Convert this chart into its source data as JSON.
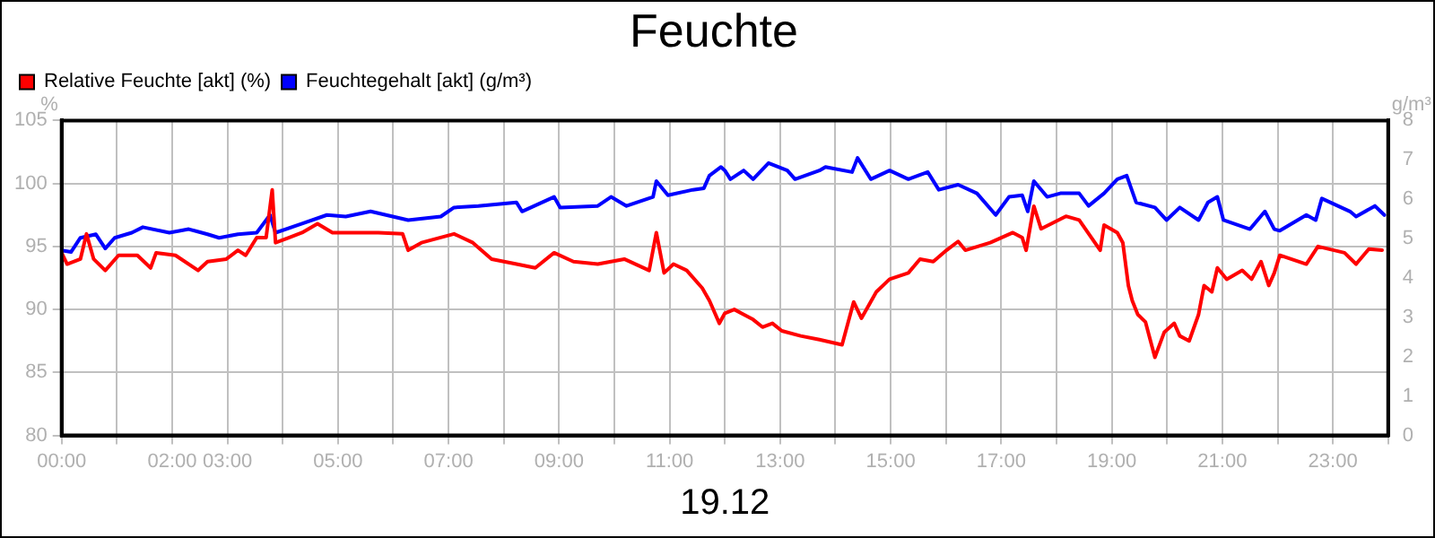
{
  "chart_data": {
    "type": "line",
    "title": "Feuchte",
    "xlabel": "19.12",
    "ylabel": "%",
    "y2label": "g/m³",
    "xlim": [
      0,
      24
    ],
    "xticks": [
      {
        "value": 0,
        "label": "00:00"
      },
      {
        "value": 1,
        "label": null
      },
      {
        "value": 2,
        "label": "02:00"
      },
      {
        "value": 3,
        "label": "03:00"
      },
      {
        "value": 4,
        "label": null
      },
      {
        "value": 5,
        "label": "05:00"
      },
      {
        "value": 6,
        "label": null
      },
      {
        "value": 7,
        "label": "07:00"
      },
      {
        "value": 8,
        "label": null
      },
      {
        "value": 9,
        "label": "09:00"
      },
      {
        "value": 10,
        "label": null
      },
      {
        "value": 11,
        "label": "11:00"
      },
      {
        "value": 12,
        "label": null
      },
      {
        "value": 13,
        "label": "13:00"
      },
      {
        "value": 14,
        "label": null
      },
      {
        "value": 15,
        "label": "15:00"
      },
      {
        "value": 16,
        "label": null
      },
      {
        "value": 17,
        "label": "17:00"
      },
      {
        "value": 18,
        "label": null
      },
      {
        "value": 19,
        "label": "19:00"
      },
      {
        "value": 20,
        "label": null
      },
      {
        "value": 21,
        "label": "21:00"
      },
      {
        "value": 22,
        "label": null
      },
      {
        "value": 23,
        "label": "23:00"
      },
      {
        "value": 24,
        "label": null
      }
    ],
    "ylim": [
      80,
      105
    ],
    "yticks": [
      80,
      85,
      90,
      95,
      100,
      105
    ],
    "y2lim": [
      0,
      8
    ],
    "y2ticks": [
      0,
      1,
      2,
      3,
      4,
      5,
      6,
      7,
      8
    ],
    "grid": true,
    "legend": "top left",
    "marker": "none",
    "line_style": "solid",
    "series": [
      {
        "name": "Relative Feuchte [akt] (%)",
        "color": "#ff0000",
        "x": [
          0,
          0.1,
          0.34,
          0.45,
          0.58,
          0.79,
          1.03,
          1.37,
          1.61,
          1.71,
          2.06,
          2.47,
          2.64,
          2.98,
          3.19,
          3.33,
          3.53,
          3.7,
          3.81,
          3.87,
          4.11,
          4.35,
          4.63,
          4.9,
          5.38,
          5.73,
          6.17,
          6.27,
          6.51,
          7.1,
          7.44,
          7.78,
          8.23,
          8.57,
          8.91,
          9.26,
          9.7,
          10.18,
          10.63,
          10.76,
          10.9,
          11.07,
          11.31,
          11.59,
          11.72,
          11.9,
          12,
          12.17,
          12.34,
          12.51,
          12.68,
          12.86,
          13.03,
          13.37,
          13.71,
          14.12,
          14.33,
          14.47,
          14.74,
          14.98,
          15.32,
          15.53,
          15.77,
          16.01,
          16.22,
          16.35,
          16.8,
          17.21,
          17.38,
          17.45,
          17.59,
          17.72,
          18.17,
          18.41,
          18.79,
          18.86,
          19.1,
          19.2,
          19.3,
          19.37,
          19.47,
          19.61,
          19.78,
          19.95,
          20.13,
          20.23,
          20.4,
          20.57,
          20.67,
          20.81,
          20.91,
          21.08,
          21.36,
          21.53,
          21.7,
          21.84,
          21.94,
          22.04,
          22.52,
          22.73,
          23.21,
          23.42,
          23.65,
          23.89
        ],
        "values": [
          94.5,
          93.6,
          94,
          96,
          94,
          93.1,
          94.3,
          94.3,
          93.3,
          94.5,
          94.3,
          93.1,
          93.8,
          94,
          94.7,
          94.3,
          95.7,
          95.7,
          99.5,
          95.3,
          95.7,
          96.1,
          96.8,
          96.1,
          96.1,
          96.1,
          96,
          94.7,
          95.3,
          96,
          95.3,
          94,
          93.6,
          93.3,
          94.5,
          93.8,
          93.6,
          94,
          93.1,
          96.1,
          92.9,
          93.6,
          93.1,
          91.7,
          90.7,
          88.9,
          89.7,
          90,
          89.6,
          89.2,
          88.6,
          88.9,
          88.3,
          87.9,
          87.6,
          87.2,
          90.6,
          89.3,
          91.4,
          92.4,
          92.9,
          94,
          93.8,
          94.7,
          95.4,
          94.7,
          95.3,
          96.1,
          95.7,
          94.7,
          98.2,
          96.4,
          97.4,
          97.1,
          94.7,
          96.7,
          96.1,
          95.3,
          91.9,
          90.7,
          89.6,
          89,
          86.2,
          88.2,
          88.9,
          87.9,
          87.5,
          89.6,
          91.9,
          91.4,
          93.3,
          92.4,
          93.1,
          92.4,
          93.8,
          91.9,
          92.9,
          94.3,
          93.6,
          95,
          94.5,
          93.6,
          94.8,
          94.7
        ]
      },
      {
        "name": "Feuchtegehalt [akt] (g/m³)",
        "color": "#0000ff",
        "axis": "y2",
        "x": [
          0,
          0.17,
          0.34,
          0.62,
          0.79,
          0.96,
          1.27,
          1.47,
          1.95,
          2.3,
          2.64,
          2.85,
          3.19,
          3.53,
          3.77,
          3.87,
          4.35,
          4.8,
          5.14,
          5.59,
          6.27,
          6.86,
          7.1,
          7.54,
          8.23,
          8.33,
          8.91,
          9.02,
          9.7,
          9.94,
          10.22,
          10.7,
          10.76,
          10.97,
          11.42,
          11.62,
          11.72,
          11.93,
          12,
          12.1,
          12.34,
          12.51,
          12.79,
          13.13,
          13.27,
          13.71,
          13.82,
          14.3,
          14.4,
          14.64,
          14.98,
          15.32,
          15.67,
          15.87,
          16.22,
          16.56,
          16.9,
          17.14,
          17.38,
          17.48,
          17.59,
          17.83,
          18.07,
          18.41,
          18.58,
          18.86,
          19.1,
          19.27,
          19.44,
          19.78,
          19.99,
          20.23,
          20.57,
          20.74,
          20.91,
          21.02,
          21.5,
          21.77,
          21.94,
          22.04,
          22.52,
          22.69,
          22.8,
          23.31,
          23.42,
          23.76,
          23.93
        ],
        "values": [
          4.7,
          4.66,
          5.02,
          5.11,
          4.75,
          5.02,
          5.15,
          5.29,
          5.15,
          5.24,
          5.11,
          5.02,
          5.11,
          5.15,
          5.6,
          5.15,
          5.38,
          5.6,
          5.56,
          5.69,
          5.47,
          5.56,
          5.79,
          5.83,
          5.92,
          5.69,
          6.06,
          5.79,
          5.83,
          6.06,
          5.83,
          6.06,
          6.46,
          6.1,
          6.24,
          6.28,
          6.6,
          6.82,
          6.73,
          6.51,
          6.73,
          6.51,
          6.92,
          6.73,
          6.51,
          6.73,
          6.82,
          6.69,
          7.05,
          6.51,
          6.73,
          6.51,
          6.69,
          6.24,
          6.37,
          6.15,
          5.6,
          6.06,
          6.1,
          5.69,
          6.46,
          6.06,
          6.15,
          6.15,
          5.83,
          6.15,
          6.51,
          6.6,
          5.92,
          5.79,
          5.47,
          5.79,
          5.47,
          5.92,
          6.06,
          5.47,
          5.24,
          5.69,
          5.24,
          5.2,
          5.6,
          5.47,
          6.02,
          5.69,
          5.56,
          5.83,
          5.6
        ]
      }
    ]
  }
}
